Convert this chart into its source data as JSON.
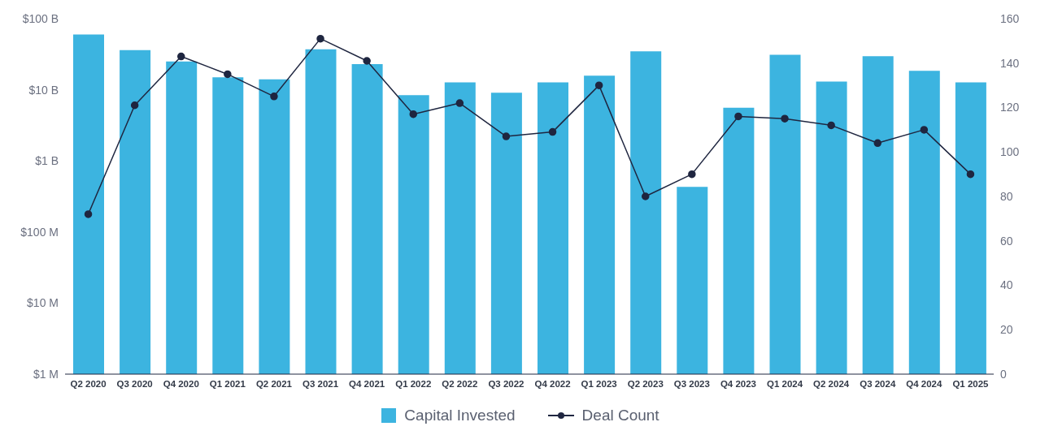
{
  "chart_data": {
    "type": "bar",
    "categories": [
      "Q2 2020",
      "Q3 2020",
      "Q4 2020",
      "Q1 2021",
      "Q2 2021",
      "Q3 2021",
      "Q4 2021",
      "Q1 2022",
      "Q2 2022",
      "Q3 2022",
      "Q4 2022",
      "Q1 2023",
      "Q2 2023",
      "Q3 2023",
      "Q4 2023",
      "Q1 2024",
      "Q2 2024",
      "Q3 2024",
      "Q4 2024",
      "Q1 2025"
    ],
    "series": [
      {
        "name": "Capital Invested",
        "color": "#3cb4e0",
        "values": [
          60000000000,
          36000000000,
          25000000000,
          15000000000,
          14000000000,
          37000000000,
          23000000000,
          8400000000,
          12700000000,
          9100000000,
          12700000000,
          15800000000,
          34800000000,
          430000000,
          5600000000,
          31100000000,
          13000000000,
          29700000000,
          18500000000,
          12700000000
        ]
      },
      {
        "name": "Deal Count",
        "type": "line",
        "axis": "y2",
        "color": "#1f2640",
        "values": [
          72,
          121,
          143,
          135,
          125,
          151,
          141,
          117,
          122,
          107,
          109,
          130,
          80,
          90,
          116,
          115,
          112,
          104,
          110,
          90
        ]
      }
    ],
    "log": "y",
    "ylim": [
      1000000,
      100000000000
    ],
    "yticks": [
      {
        "value": 1000000,
        "label": "$1 M"
      },
      {
        "value": 10000000,
        "label": "$10 M"
      },
      {
        "value": 100000000,
        "label": "$100 M"
      },
      {
        "value": 1000000000,
        "label": "$1 B"
      },
      {
        "value": 10000000000,
        "label": "$10 B"
      },
      {
        "value": 100000000000,
        "label": "$100 B"
      }
    ],
    "y2lim": [
      0,
      160
    ],
    "y2ticks": [
      0,
      20,
      40,
      60,
      80,
      100,
      120,
      140,
      160
    ],
    "marker": "circle",
    "legend": "bottom",
    "grid": false
  }
}
